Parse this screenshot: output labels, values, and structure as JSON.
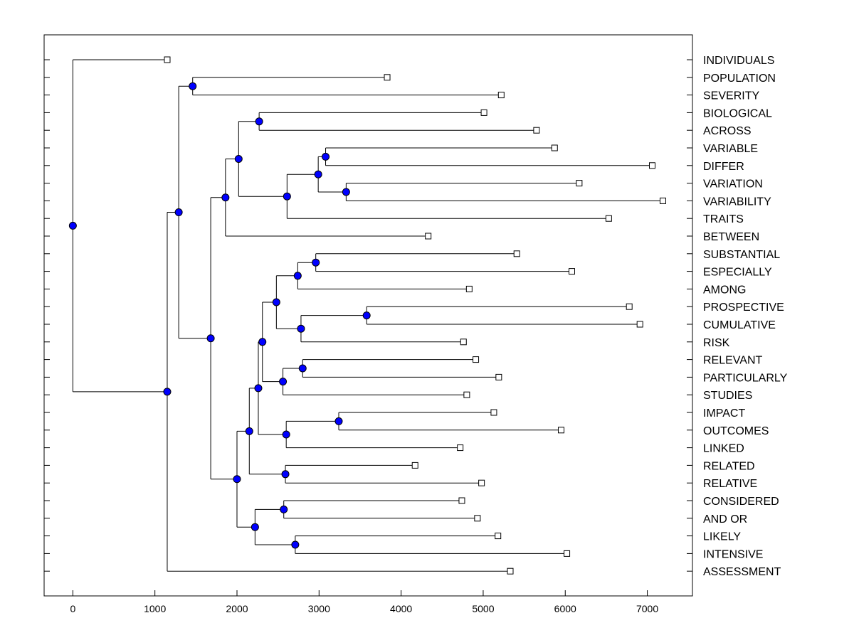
{
  "chart_data": {
    "type": "dendrogram",
    "title": "",
    "xlabel": "",
    "ylabel": "",
    "xlim": [
      -350,
      7550
    ],
    "xticks": [
      0,
      1000,
      2000,
      3000,
      4000,
      5000,
      6000,
      7000
    ],
    "xtick_labels": [
      "0",
      "1000",
      "2000",
      "3000",
      "4000",
      "5000",
      "6000",
      "7000"
    ],
    "colors": {
      "node_fill": "#0000ff",
      "line": "#000000",
      "leaf_fill": "#ffffff"
    },
    "leaves": [
      {
        "label": "INDIVIDUALS",
        "x": 1150
      },
      {
        "label": "POPULATION",
        "x": 3830
      },
      {
        "label": "SEVERITY",
        "x": 5220
      },
      {
        "label": "BIOLOGICAL",
        "x": 5010
      },
      {
        "label": "ACROSS",
        "x": 5650
      },
      {
        "label": "VARIABLE",
        "x": 5870
      },
      {
        "label": "DIFFER",
        "x": 7060
      },
      {
        "label": "VARIATION",
        "x": 6170
      },
      {
        "label": "VARIABILITY",
        "x": 7190
      },
      {
        "label": "TRAITS",
        "x": 6530
      },
      {
        "label": "BETWEEN",
        "x": 4330
      },
      {
        "label": "SUBSTANTIAL",
        "x": 5410
      },
      {
        "label": "ESPECIALLY",
        "x": 6080
      },
      {
        "label": "AMONG",
        "x": 4830
      },
      {
        "label": "PROSPECTIVE",
        "x": 6780
      },
      {
        "label": "CUMULATIVE",
        "x": 6910
      },
      {
        "label": "RISK",
        "x": 4760
      },
      {
        "label": "RELEVANT",
        "x": 4910
      },
      {
        "label": "PARTICULARLY",
        "x": 5190
      },
      {
        "label": "STUDIES",
        "x": 4800
      },
      {
        "label": "IMPACT",
        "x": 5130
      },
      {
        "label": "OUTCOMES",
        "x": 5950
      },
      {
        "label": "LINKED",
        "x": 4720
      },
      {
        "label": "RELATED",
        "x": 4170
      },
      {
        "label": "RELATIVE",
        "x": 4980
      },
      {
        "label": "CONSIDERED",
        "x": 4740
      },
      {
        "label": "AND OR",
        "x": 4930
      },
      {
        "label": "LIKELY",
        "x": 5180
      },
      {
        "label": "INTENSIVE",
        "x": 6020
      },
      {
        "label": "ASSESSMENT",
        "x": 5330
      }
    ],
    "nodes": [
      {
        "id": "n1",
        "x": 1460,
        "children": [
          "L1",
          "L2"
        ]
      },
      {
        "id": "n2",
        "x": 2270,
        "children": [
          "L3",
          "L4"
        ]
      },
      {
        "id": "n3",
        "x": 3080,
        "children": [
          "L5",
          "L6"
        ]
      },
      {
        "id": "n4",
        "x": 3330,
        "children": [
          "L7",
          "L8"
        ]
      },
      {
        "id": "n5",
        "x": 2990,
        "children": [
          "n3",
          "n4"
        ]
      },
      {
        "id": "n6",
        "x": 2610,
        "children": [
          "n5",
          "L9"
        ]
      },
      {
        "id": "n7",
        "x": 2020,
        "children": [
          "n2",
          "n6"
        ]
      },
      {
        "id": "n8",
        "x": 1860,
        "children": [
          "n7",
          "L10"
        ]
      },
      {
        "id": "n9",
        "x": 2960,
        "children": [
          "L11",
          "L12"
        ]
      },
      {
        "id": "n10",
        "x": 2740,
        "children": [
          "n9",
          "L13"
        ]
      },
      {
        "id": "n11",
        "x": 3580,
        "children": [
          "L14",
          "L15"
        ]
      },
      {
        "id": "n12",
        "x": 2780,
        "children": [
          "n11",
          "L16"
        ]
      },
      {
        "id": "n13",
        "x": 2480,
        "children": [
          "n10",
          "n12"
        ]
      },
      {
        "id": "n14",
        "x": 2800,
        "children": [
          "L17",
          "L18"
        ]
      },
      {
        "id": "n15",
        "x": 2560,
        "children": [
          "n14",
          "L19"
        ]
      },
      {
        "id": "n16",
        "x": 2310,
        "children": [
          "n13",
          "n15"
        ]
      },
      {
        "id": "n17",
        "x": 3240,
        "children": [
          "L20",
          "L21"
        ]
      },
      {
        "id": "n18",
        "x": 2600,
        "children": [
          "n17",
          "L22"
        ]
      },
      {
        "id": "n19",
        "x": 2260,
        "children": [
          "n16",
          "n18"
        ]
      },
      {
        "id": "n20",
        "x": 2590,
        "children": [
          "L23",
          "L24"
        ]
      },
      {
        "id": "n21",
        "x": 2150,
        "children": [
          "n19",
          "n20"
        ]
      },
      {
        "id": "n22",
        "x": 2570,
        "children": [
          "L25",
          "L26"
        ]
      },
      {
        "id": "n23",
        "x": 2710,
        "children": [
          "L27",
          "L28"
        ]
      },
      {
        "id": "n24",
        "x": 2220,
        "children": [
          "n22",
          "n23"
        ]
      },
      {
        "id": "n25",
        "x": 2000,
        "children": [
          "n21",
          "n24"
        ]
      },
      {
        "id": "n26",
        "x": 1680,
        "children": [
          "n8",
          "n25"
        ]
      },
      {
        "id": "n27",
        "x": 1290,
        "children": [
          "n1",
          "n26"
        ]
      },
      {
        "id": "n28",
        "x": 1150,
        "children": [
          "n27",
          "L29"
        ]
      },
      {
        "id": "n29",
        "x": 0,
        "children": [
          "L0",
          "n28"
        ]
      }
    ]
  }
}
